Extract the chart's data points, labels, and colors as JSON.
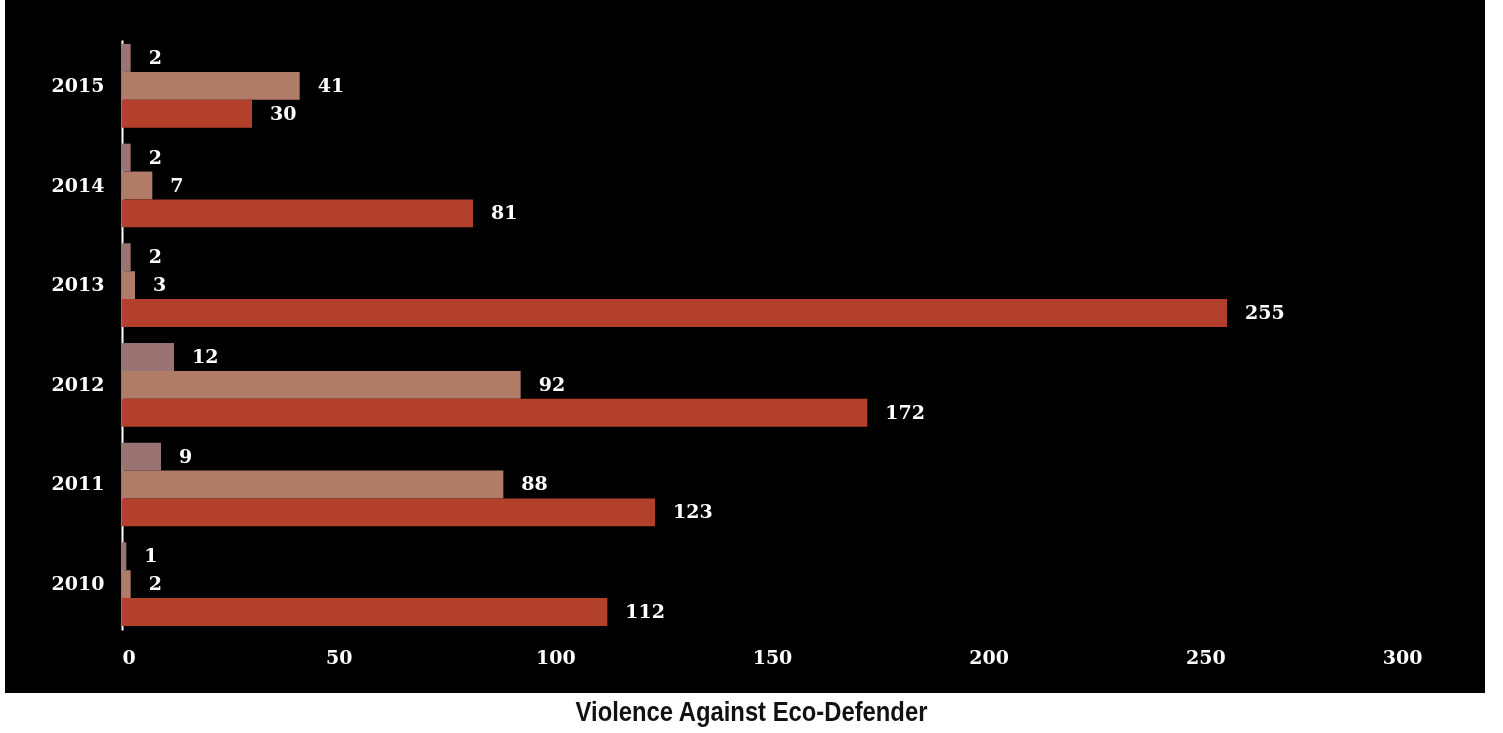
{
  "chart_data": {
    "type": "bar",
    "orientation": "horizontal",
    "title": "Violence Against Eco-Defender",
    "categories": [
      "2015",
      "2014",
      "2013",
      "2012",
      "2011",
      "2010"
    ],
    "series": [
      {
        "color": "#9a7472",
        "values": [
          2,
          2,
          2,
          12,
          9,
          1
        ]
      },
      {
        "color": "#b07c68",
        "values": [
          41,
          7,
          3,
          92,
          88,
          2
        ]
      },
      {
        "color": "#b3402a",
        "values": [
          30,
          81,
          255,
          172,
          123,
          112
        ]
      }
    ],
    "xlim": [
      0,
      300
    ],
    "xticks": [
      0,
      50,
      100,
      150,
      200,
      250,
      300
    ],
    "data_labels": true,
    "grid": false,
    "legend": false
  }
}
